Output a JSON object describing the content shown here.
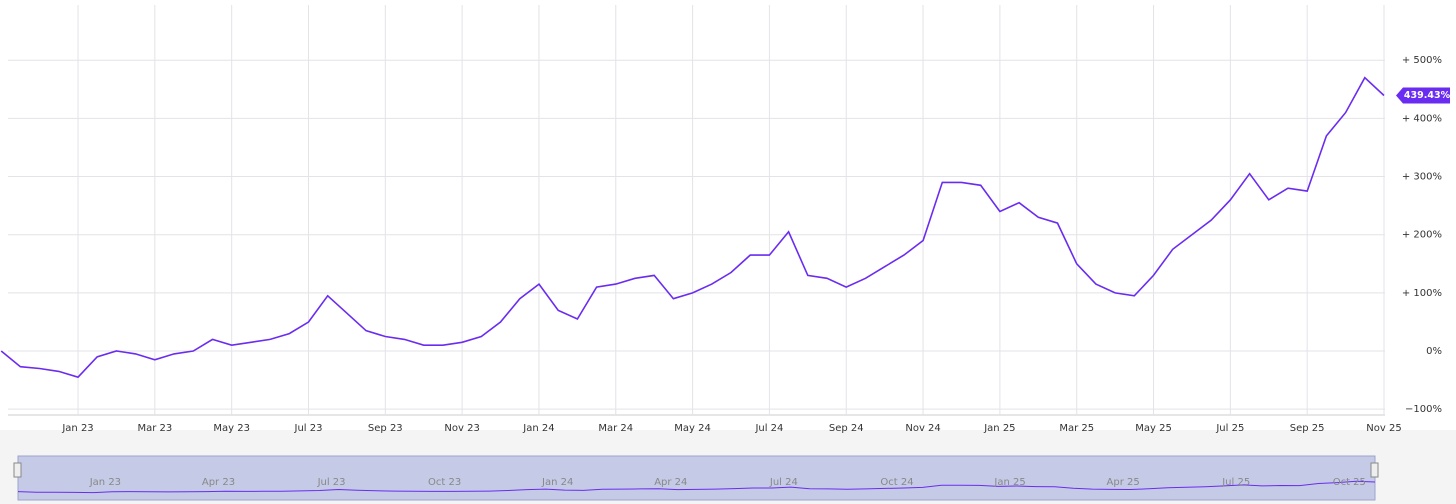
{
  "chart_data": {
    "type": "line",
    "categories": [
      null,
      null,
      null,
      null,
      "Jan 23",
      null,
      null,
      null,
      "Mar 23",
      null,
      null,
      null,
      "May 23",
      null,
      null,
      null,
      "Jul 23",
      null,
      null,
      null,
      "Sep 23",
      null,
      null,
      null,
      "Nov 23",
      null,
      null,
      null,
      "Jan 24",
      null,
      null,
      null,
      "Mar 24",
      null,
      null,
      null,
      "May 24",
      null,
      null,
      null,
      "Jul 24",
      null,
      null,
      null,
      "Sep 24",
      null,
      null,
      null,
      "Nov 24",
      null,
      null,
      null,
      "Jan 25",
      null,
      null,
      null,
      "Mar 25",
      null,
      null,
      null,
      "May 25",
      null,
      null,
      null,
      "Jul 25",
      null,
      null,
      null,
      "Sep 25",
      null,
      null,
      null,
      "Nov 25"
    ],
    "series": [
      {
        "color": "#6a2cf0",
        "values": [
          0,
          -27,
          -30,
          -35,
          -45,
          -10,
          0,
          -5,
          -15,
          -5,
          0,
          20,
          10,
          15,
          20,
          30,
          50,
          95,
          65,
          35,
          25,
          20,
          10,
          10,
          15,
          25,
          50,
          90,
          115,
          70,
          55,
          110,
          115,
          125,
          130,
          90,
          100,
          115,
          135,
          165,
          165,
          205,
          130,
          125,
          110,
          125,
          145,
          165,
          190,
          290,
          290,
          285,
          240,
          255,
          230,
          220,
          150,
          115,
          100,
          95,
          130,
          175,
          200,
          225,
          260,
          305,
          260,
          280,
          275,
          370,
          410,
          470,
          439.43
        ],
        "value_labels": [
          null,
          null,
          null,
          null,
          null,
          null,
          null,
          null,
          null,
          null,
          null,
          null,
          null,
          null,
          null,
          null,
          null,
          null,
          null,
          null,
          null,
          null,
          null,
          null,
          null,
          null,
          null,
          null,
          null,
          null,
          null,
          null,
          null,
          null,
          null,
          null,
          null,
          null,
          null,
          null,
          null,
          null,
          null,
          null,
          null,
          null,
          null,
          null,
          null,
          null,
          null,
          null,
          null,
          null,
          null,
          null,
          null,
          null,
          null,
          null,
          null,
          null,
          null,
          null,
          null,
          null,
          null,
          null,
          null,
          null,
          null,
          null,
          "439.43%"
        ]
      }
    ],
    "ylim": [
      -110,
      595
    ],
    "yticks": [
      {
        "value": -100,
        "label": "−100%"
      },
      {
        "value": 0,
        "label": "0%"
      },
      {
        "value": 100,
        "label": "+ 100%"
      },
      {
        "value": 200,
        "label": "+ 200%"
      },
      {
        "value": 300,
        "label": "+ 300%"
      },
      {
        "value": 400,
        "label": "+ 400%"
      },
      {
        "value": 500,
        "label": "+ 500%"
      }
    ],
    "grid": true,
    "navigator_labels": [
      "Jan 23",
      "Apr 23",
      "Jul 23",
      "Oct 23",
      "Jan 24",
      "Apr 24",
      "Jul 24",
      "Oct 24",
      "Jan 25",
      "Apr 25",
      "Jul 25",
      "Oct 25"
    ]
  }
}
